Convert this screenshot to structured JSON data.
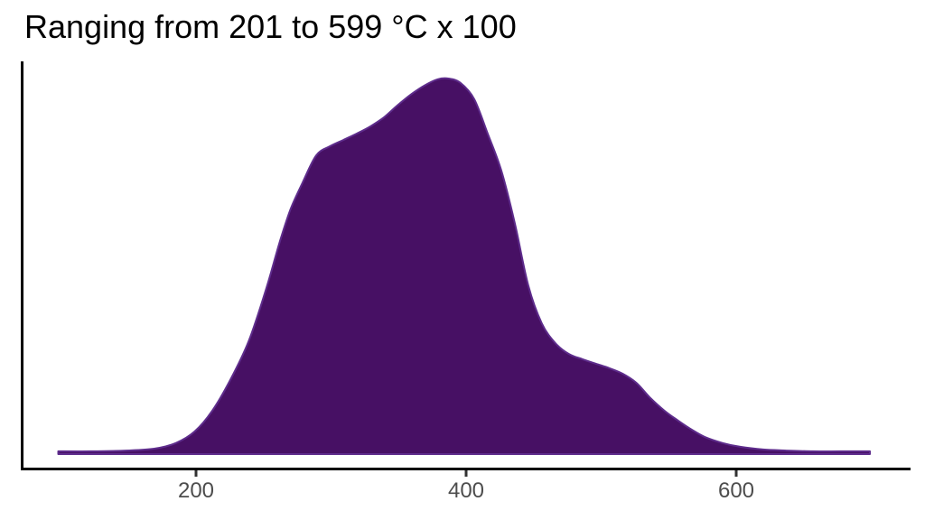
{
  "chart_data": {
    "type": "area",
    "subtype": "density",
    "title": "Ranging from 201 to 599 °C x 100",
    "xlabel": "",
    "ylabel": "",
    "grid": false,
    "legend": false,
    "x_ticks": [
      200,
      400,
      600
    ],
    "x_tick_labels": [
      "200",
      "400",
      "600"
    ],
    "x_axis_range": [
      70,
      729
    ],
    "data_value_range": [
      201,
      599
    ],
    "y_axis_shown": false,
    "points": [
      [
        98,
        0.005
      ],
      [
        122,
        0.005
      ],
      [
        148,
        0.007
      ],
      [
        169,
        0.012
      ],
      [
        185,
        0.027
      ],
      [
        199,
        0.058
      ],
      [
        212,
        0.113
      ],
      [
        225,
        0.193
      ],
      [
        239,
        0.299
      ],
      [
        252,
        0.439
      ],
      [
        262,
        0.564
      ],
      [
        270,
        0.651
      ],
      [
        279,
        0.723
      ],
      [
        289,
        0.795
      ],
      [
        299,
        0.819
      ],
      [
        309,
        0.836
      ],
      [
        319,
        0.853
      ],
      [
        329,
        0.872
      ],
      [
        339,
        0.896
      ],
      [
        349,
        0.928
      ],
      [
        359,
        0.957
      ],
      [
        369,
        0.981
      ],
      [
        379,
        0.998
      ],
      [
        387,
        1.0
      ],
      [
        396,
        0.988
      ],
      [
        406,
        0.945
      ],
      [
        416,
        0.853
      ],
      [
        426,
        0.755
      ],
      [
        436,
        0.615
      ],
      [
        446,
        0.448
      ],
      [
        456,
        0.347
      ],
      [
        466,
        0.294
      ],
      [
        476,
        0.265
      ],
      [
        486,
        0.251
      ],
      [
        496,
        0.239
      ],
      [
        506,
        0.227
      ],
      [
        516,
        0.212
      ],
      [
        526,
        0.188
      ],
      [
        536,
        0.149
      ],
      [
        547,
        0.113
      ],
      [
        557,
        0.087
      ],
      [
        567,
        0.063
      ],
      [
        577,
        0.043
      ],
      [
        590,
        0.027
      ],
      [
        603,
        0.017
      ],
      [
        620,
        0.01
      ],
      [
        637,
        0.007
      ],
      [
        657,
        0.005
      ],
      [
        677,
        0.005
      ],
      [
        699,
        0.005
      ]
    ]
  },
  "colors": {
    "fill": "#471064",
    "stroke": "#5e2c8c",
    "axis": "#000000",
    "tick_mark": "#333333",
    "tick_label": "#4d4d4d",
    "title": "#000000",
    "background": "#ffffff"
  }
}
